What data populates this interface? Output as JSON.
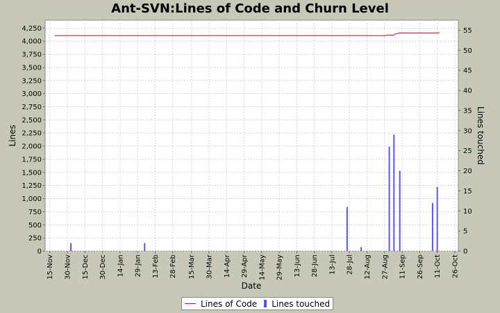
{
  "chart_data": {
    "type": "bar+line",
    "title": "Ant-SVN:Lines of Code and Churn Level",
    "xlabel": "Date",
    "ylabel_left": "Lines",
    "ylabel_right": "Lines touched",
    "x_ticks": [
      "15-Nov",
      "30-Nov",
      "15-Dec",
      "30-Dec",
      "14-Jan",
      "29-Jan",
      "13-Feb",
      "28-Feb",
      "15-Mar",
      "30-Mar",
      "14-Apr",
      "29-Apr",
      "14-May",
      "29-May",
      "13-Jun",
      "28-Jun",
      "13-Jul",
      "28-Jul",
      "12-Aug",
      "27-Aug",
      "11-Sep",
      "26-Sep",
      "11-Oct",
      "26-Oct"
    ],
    "ylim_left": [
      0,
      4400
    ],
    "yticks_left": [
      "0",
      "250",
      "500",
      "750",
      "1,000",
      "1,250",
      "1,500",
      "1,750",
      "2,000",
      "2,250",
      "2,500",
      "2,750",
      "3,000",
      "3,250",
      "3,500",
      "3,750",
      "4,000",
      "4,250"
    ],
    "ylim_right": [
      0,
      57.5
    ],
    "yticks_right": [
      "0",
      "5",
      "10",
      "15",
      "20",
      "25",
      "30",
      "35",
      "40",
      "45",
      "50",
      "55"
    ],
    "grid": true,
    "legend": "bottom-center",
    "series": [
      {
        "name": "Lines of Code",
        "kind": "line",
        "color": "#ff0000",
        "axis": "left",
        "points": [
          [
            "19-Nov",
            4105
          ],
          [
            "28-Aug",
            4105
          ],
          [
            "29-Aug",
            4115
          ],
          [
            "4-Sep",
            4115
          ],
          [
            "5-Sep",
            4140
          ],
          [
            "7-Sep",
            4140
          ],
          [
            "8-Sep",
            4155
          ],
          [
            "15-Sep",
            4155
          ],
          [
            "12-Oct",
            4155
          ],
          [
            "13-Oct",
            4170
          ]
        ]
      },
      {
        "name": "Lines touched",
        "kind": "bar",
        "color": "#5555ff",
        "axis": "right",
        "points": [
          [
            "3-Dec",
            2
          ],
          [
            "4-Feb",
            2
          ],
          [
            "26-Jul",
            11
          ],
          [
            "7-Aug",
            1
          ],
          [
            "31-Aug",
            26
          ],
          [
            "4-Sep",
            29
          ],
          [
            "9-Sep",
            20
          ],
          [
            "7-Oct",
            12
          ],
          [
            "11-Oct",
            16
          ]
        ]
      }
    ]
  }
}
